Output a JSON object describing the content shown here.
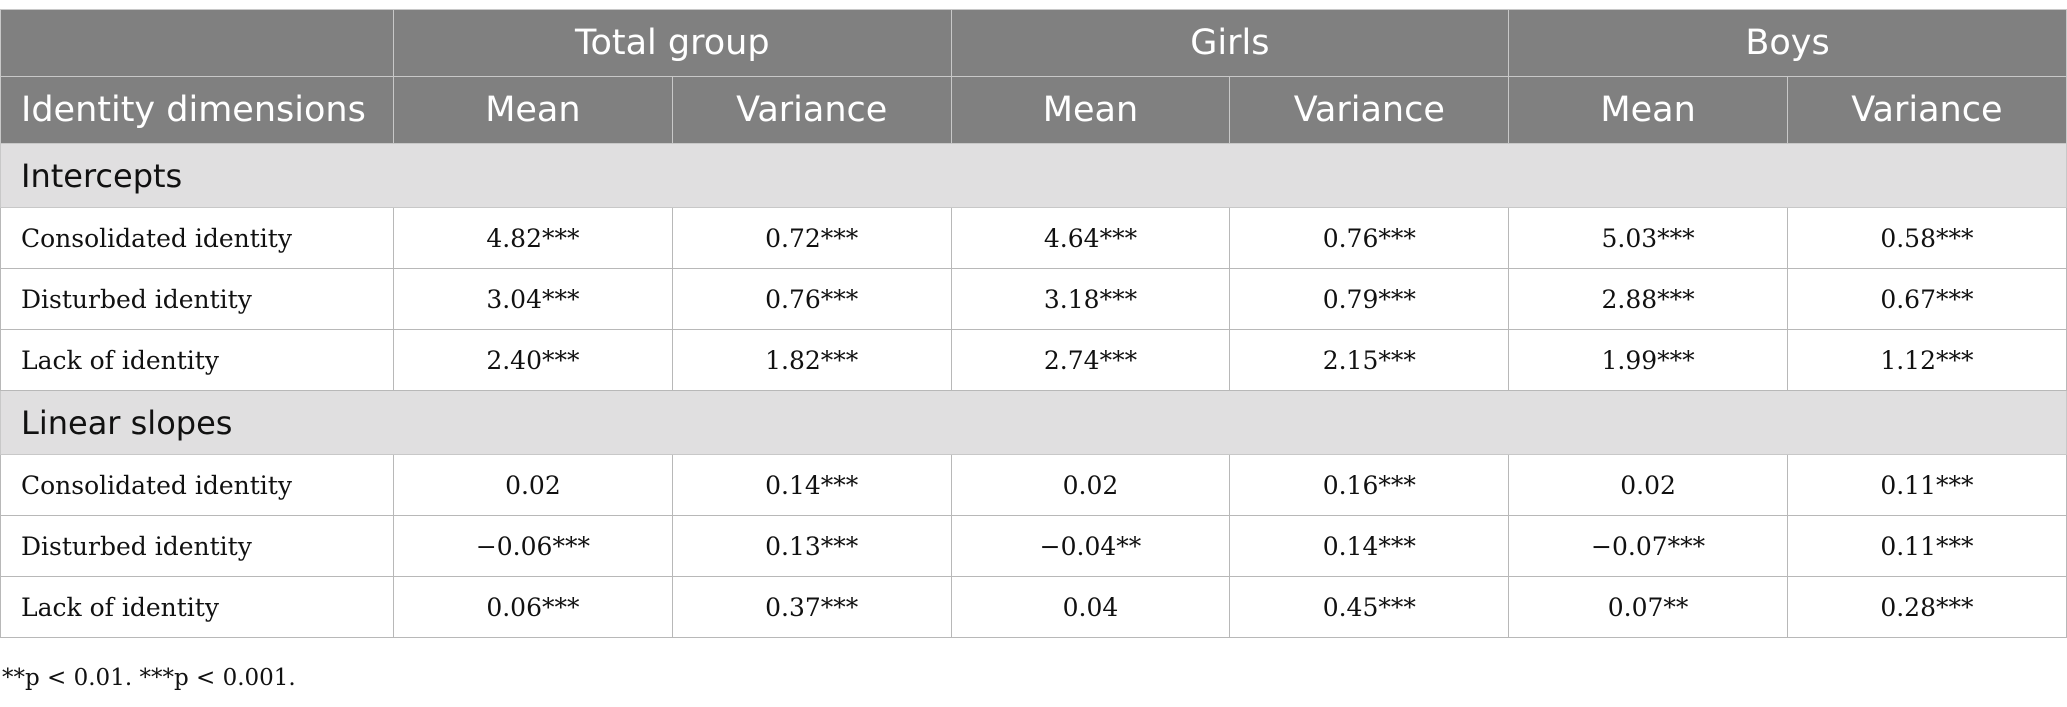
{
  "header": {
    "groups": [
      "Total group",
      "Girls",
      "Boys"
    ],
    "row_label": "Identity dimensions",
    "sub": [
      "Mean",
      "Variance",
      "Mean",
      "Variance",
      "Mean",
      "Variance"
    ]
  },
  "sections": [
    {
      "title": "Intercepts",
      "rows": [
        {
          "label": "Consolidated identity",
          "values": [
            "4.82***",
            "0.72***",
            "4.64***",
            "0.76***",
            "5.03***",
            "0.58***"
          ]
        },
        {
          "label": "Disturbed identity",
          "values": [
            "3.04***",
            "0.76***",
            "3.18***",
            "0.79***",
            "2.88***",
            "0.67***"
          ]
        },
        {
          "label": "Lack of identity",
          "values": [
            "2.40***",
            "1.82***",
            "2.74***",
            "2.15***",
            "1.99***",
            "1.12***"
          ]
        }
      ]
    },
    {
      "title": "Linear slopes",
      "rows": [
        {
          "label": "Consolidated identity",
          "values": [
            "0.02",
            "0.14***",
            "0.02",
            "0.16***",
            "0.02",
            "0.11***"
          ]
        },
        {
          "label": "Disturbed identity",
          "values": [
            "−0.06***",
            "0.13***",
            "−0.04**",
            "0.14***",
            "−0.07***",
            "0.11***"
          ]
        },
        {
          "label": "Lack of identity",
          "values": [
            "0.06***",
            "0.37***",
            "0.04",
            "0.45***",
            "0.07**",
            "0.28***"
          ]
        }
      ]
    }
  ],
  "footnote": "**p < 0.01. ***p < 0.001."
}
